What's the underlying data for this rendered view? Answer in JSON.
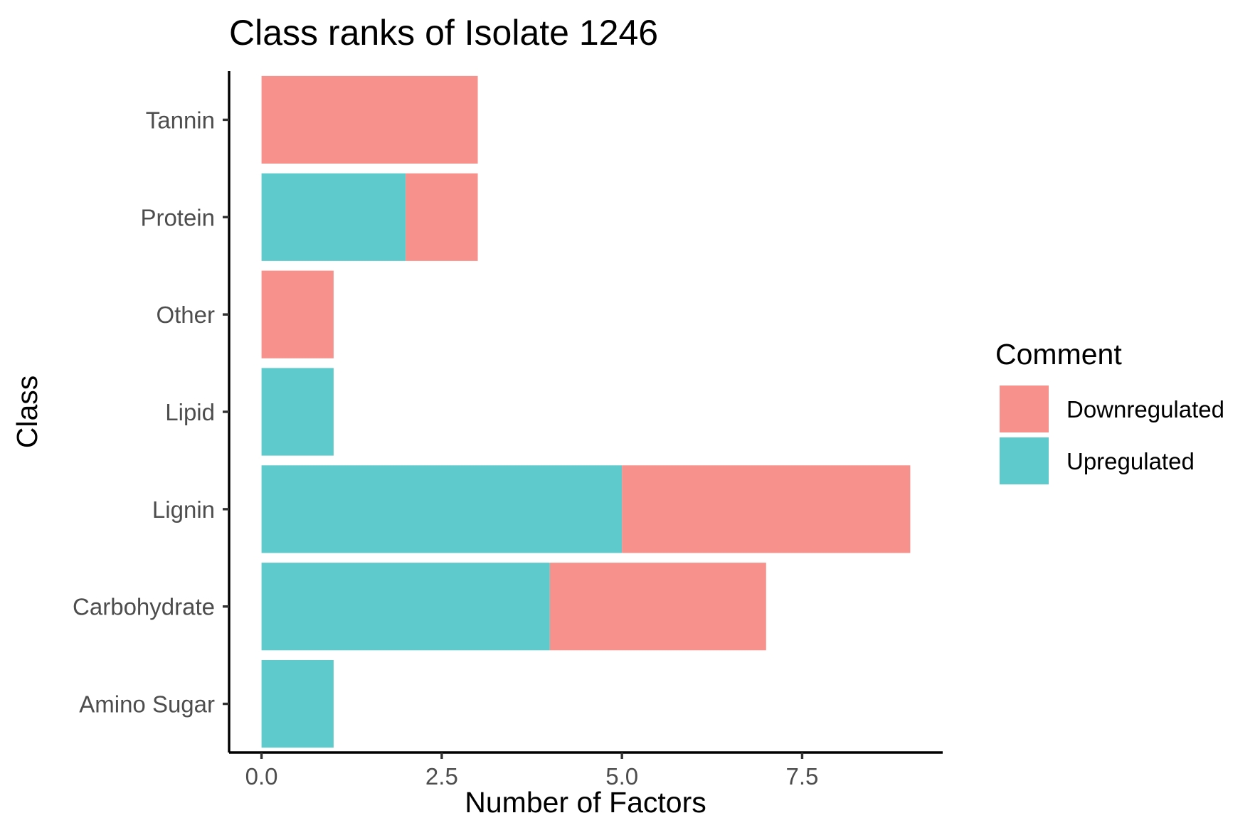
{
  "chart_data": {
    "type": "bar",
    "orientation": "horizontal",
    "stacked": true,
    "title": "Class ranks of Isolate 1246",
    "xlabel": "Number of Factors",
    "ylabel": "Class",
    "categories": [
      "Amino Sugar",
      "Carbohydrate",
      "Lignin",
      "Lipid",
      "Other",
      "Protein",
      "Tannin"
    ],
    "series": [
      {
        "name": "Upregulated",
        "color": "#5ECACC",
        "values": [
          1,
          4,
          5,
          1,
          0,
          2,
          0
        ]
      },
      {
        "name": "Downregulated",
        "color": "#F7918C",
        "values": [
          0,
          3,
          4,
          0,
          1,
          1,
          3
        ]
      }
    ],
    "xlim": [
      -0.45,
      9.45
    ],
    "xticks": [
      0,
      2.5,
      5,
      7.5
    ],
    "xtick_labels": [
      "0.0",
      "2.5",
      "5.0",
      "7.5"
    ],
    "grid": false,
    "legend": {
      "title": "Comment",
      "position": "right",
      "entries": [
        {
          "label": "Downregulated",
          "color": "#F7918C"
        },
        {
          "label": "Upregulated",
          "color": "#5ECACC"
        }
      ]
    }
  }
}
